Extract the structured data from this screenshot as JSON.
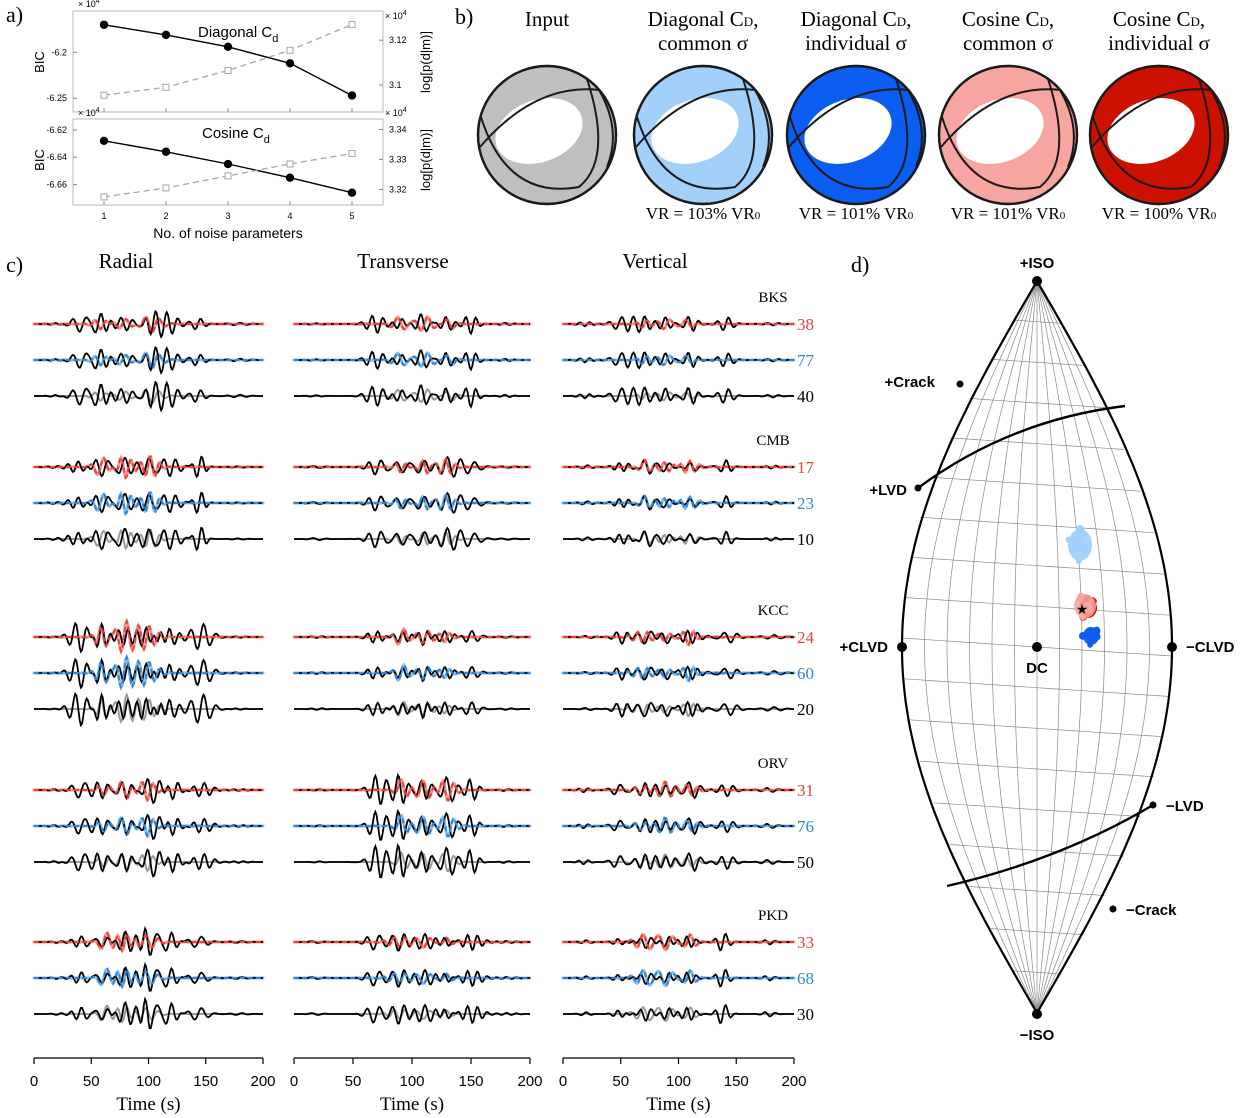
{
  "panel_labels": {
    "a": "a)",
    "b": "b)",
    "c": "c)",
    "d": "d)"
  },
  "colors": {
    "input": "#bfbfbf",
    "diag_common": "#a3d0fa",
    "diag_individual": "#0b5cf0",
    "cos_common": "#f7a5a0",
    "cos_individual": "#cc1100",
    "trace_red": "#e8423a",
    "trace_blue": "#2f86d8",
    "trace_gray": "#9a9a9a",
    "dashed_gray": "#a6a6a6"
  },
  "chart_data": [
    {
      "type": "line",
      "panel": "a-top",
      "title": "Diagonal C",
      "title_subscript": "d",
      "xlabel": "No. of noise parameters",
      "ylabel": "BIC",
      "ylabel_right": "log[p(d|m)]",
      "multiplier_left": "× 10",
      "multiplier_right": "× 10",
      "multiplier_exp": "4",
      "x": [
        1,
        2,
        3,
        4,
        5
      ],
      "xlim": [
        0.5,
        5.5
      ],
      "ylim": [
        -6.265,
        -6.155
      ],
      "yticks": [
        -6.25,
        -6.2
      ],
      "ytick_labels": [
        "-6.25",
        "-6.2"
      ],
      "y2lim": [
        3.088,
        3.133
      ],
      "y2ticks": [
        3.1,
        3.12
      ],
      "y2tick_labels": [
        "3.1",
        "3.12"
      ],
      "series": [
        {
          "axis": "left",
          "style": "solid-filled-circle",
          "values": [
            -6.17,
            -6.181,
            -6.194,
            -6.212,
            -6.247
          ]
        },
        {
          "axis": "right",
          "style": "dashed-open-square",
          "values": [
            3.0955,
            3.099,
            3.1065,
            3.1155,
            3.127
          ]
        }
      ]
    },
    {
      "type": "line",
      "panel": "a-bottom",
      "title": "Cosine C",
      "title_subscript": "d",
      "xlabel": "No. of noise parameters",
      "ylabel": "BIC",
      "ylabel_right": "log[p(d|m)]",
      "multiplier_left": "× 10",
      "multiplier_right": "× 10",
      "multiplier_exp": "4",
      "x": [
        1,
        2,
        3,
        4,
        5
      ],
      "xticks": [
        1,
        2,
        3,
        4,
        5
      ],
      "xtick_labels": [
        "1",
        "2",
        "3",
        "4",
        "5"
      ],
      "xlim": [
        0.5,
        5.5
      ],
      "ylim": [
        -6.675,
        -6.612
      ],
      "yticks": [
        -6.66,
        -6.64,
        -6.62
      ],
      "ytick_labels": [
        "-6.66",
        "-6.64",
        "-6.62"
      ],
      "y2lim": [
        3.3148,
        3.3435
      ],
      "y2ticks": [
        3.32,
        3.33,
        3.34
      ],
      "y2tick_labels": [
        "3.32",
        "3.33",
        "3.34"
      ],
      "series": [
        {
          "axis": "left",
          "style": "solid-filled-circle",
          "values": [
            -6.628,
            -6.636,
            -6.645,
            -6.655,
            -6.666
          ]
        },
        {
          "axis": "right",
          "style": "dashed-open-square",
          "values": [
            3.3175,
            3.3205,
            3.3245,
            3.3285,
            3.332
          ]
        }
      ]
    }
  ],
  "beachballs": [
    {
      "key": "input",
      "title_lines": [
        "Input"
      ],
      "vr": "",
      "color_key": "input"
    },
    {
      "key": "diag_common",
      "title_lines": [
        "Diagonal CD,",
        "common σ"
      ],
      "vr": "VR = 103% VR0",
      "color_key": "diag_common"
    },
    {
      "key": "diag_individual",
      "title_lines": [
        "Diagonal CD,",
        "individual σ"
      ],
      "vr": "VR = 101% VR0",
      "color_key": "diag_individual"
    },
    {
      "key": "cos_common",
      "title_lines": [
        "Cosine CD,",
        "common σ"
      ],
      "vr": "VR = 101% VR0",
      "color_key": "cos_common"
    },
    {
      "key": "cos_individual",
      "title_lines": [
        "Cosine CD,",
        "individual σ"
      ],
      "vr": "VR = 100% VR0",
      "color_key": "cos_individual"
    }
  ],
  "waveforms": {
    "columns": [
      "Radial",
      "Transverse",
      "Vertical"
    ],
    "xlabel": "Time (s)",
    "xticks": [
      0,
      50,
      100,
      150,
      200
    ],
    "xtick_labels": [
      "0",
      "50",
      "100",
      "150",
      "200"
    ],
    "xlim": [
      0,
      200
    ],
    "stations": [
      {
        "name": "BKS",
        "vr": [
          "38",
          "77",
          "40"
        ]
      },
      {
        "name": "CMB",
        "vr": [
          "17",
          "23",
          "10"
        ]
      },
      {
        "name": "KCC",
        "vr": [
          "24",
          "60",
          "20"
        ]
      },
      {
        "name": "ORV",
        "vr": [
          "31",
          "76",
          "50"
        ]
      },
      {
        "name": "PKD",
        "vr": [
          "33",
          "68",
          "30"
        ]
      }
    ]
  },
  "lune": {
    "type": "scatter",
    "labels": {
      "iso_plus": "+ISO",
      "iso_minus": "−ISO",
      "clvd_plus": "+CLVD",
      "clvd_minus": "−CLVD",
      "crack_plus": "+Crack",
      "crack_minus": "−Crack",
      "lvd_plus": "+LVD",
      "lvd_minus": "−LVD",
      "dc": "DC"
    },
    "solutions": [
      {
        "key": "diag_common",
        "gamma": 10,
        "delta": 20
      },
      {
        "key": "cos_individual",
        "gamma": 8,
        "delta": 8
      },
      {
        "key": "cos_common",
        "gamma": 9,
        "delta": 9
      },
      {
        "key": "diag_individual",
        "gamma": 10,
        "delta": 2
      },
      {
        "key": "true_star",
        "gamma": 7,
        "delta": 8
      }
    ]
  }
}
